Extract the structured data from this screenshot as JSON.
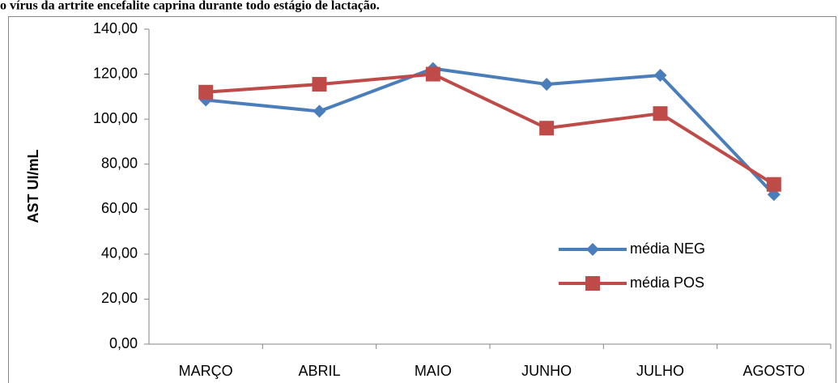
{
  "heading": "o vírus da artrite encefalite caprina durante todo estágio de lactação.",
  "chart_data": {
    "type": "line",
    "y_label": "AST UI/mL",
    "categories": [
      "MARÇO",
      "ABRIL",
      "MAIO",
      "JUNHO",
      "JULHO",
      "AGOSTO"
    ],
    "series": [
      {
        "name": "média NEG",
        "color": "#4a7ebb",
        "marker": "diamond",
        "values": [
          108.5,
          103.5,
          122.5,
          115.5,
          119.5,
          66.5
        ]
      },
      {
        "name": "média POS",
        "color": "#be4b48",
        "marker": "square",
        "values": [
          112,
          115.5,
          120,
          96,
          102.5,
          71
        ]
      }
    ],
    "ylim": [
      0,
      140
    ],
    "yticks": [
      {
        "value": 0,
        "label": "0,00"
      },
      {
        "value": 20,
        "label": "20,00"
      },
      {
        "value": 40,
        "label": "40,00"
      },
      {
        "value": 60,
        "label": "60,00"
      },
      {
        "value": 80,
        "label": "80,00"
      },
      {
        "value": 100,
        "label": "100,00"
      },
      {
        "value": 120,
        "label": "120,00"
      },
      {
        "value": 140,
        "label": "140,00"
      }
    ],
    "legend": "right",
    "grid": false
  }
}
